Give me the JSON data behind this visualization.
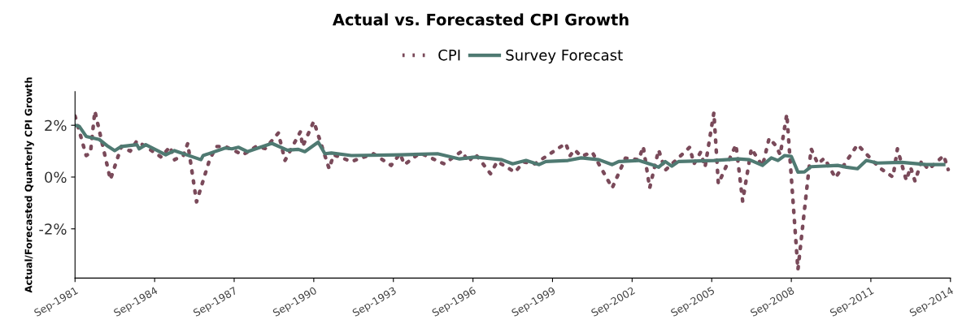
{
  "chart_data": {
    "type": "line",
    "title": "Actual vs. Forecasted CPI Growth",
    "ylabel": "Actual/Forecasted Quarterly CPI Growth",
    "xlim": [
      "1981-09",
      "2014-09"
    ],
    "xticks": [
      {
        "value": "1981-09",
        "label": "Sep-1981"
      },
      {
        "value": "1984-09",
        "label": "Sep-1984"
      },
      {
        "value": "1987-09",
        "label": "Sep-1987"
      },
      {
        "value": "1990-09",
        "label": "Sep-1990"
      },
      {
        "value": "1993-09",
        "label": "Sep-1993"
      },
      {
        "value": "1996-09",
        "label": "Sep-1996"
      },
      {
        "value": "1999-09",
        "label": "Sep-1999"
      },
      {
        "value": "2002-09",
        "label": "Sep-2002"
      },
      {
        "value": "2005-09",
        "label": "Sep-2005"
      },
      {
        "value": "2008-09",
        "label": "Sep-2008"
      },
      {
        "value": "2011-09",
        "label": "Sep-2011"
      },
      {
        "value": "2014-09",
        "label": "Sep-2014"
      }
    ],
    "ylim": [
      -3.9,
      3.3
    ],
    "yticks": [
      {
        "value": -2,
        "label": "-2%"
      },
      {
        "value": 0,
        "label": "0%"
      },
      {
        "value": 2,
        "label": "2%"
      }
    ],
    "grid": false,
    "legend": "top",
    "series": [
      {
        "name": "CPI",
        "color": "#7a4a5a",
        "line_style": "dotted",
        "x": [
          "1981-09",
          "1982-02",
          "1982-04",
          "1982-06",
          "1983-01",
          "1983-06",
          "1983-10",
          "1984-01",
          "1984-12",
          "1985-04",
          "1985-06",
          "1985-10",
          "1985-12",
          "1986-04",
          "1986-10",
          "1987-01",
          "1987-05",
          "1988-01",
          "1988-07",
          "1988-11",
          "1989-05",
          "1989-08",
          "1990-03",
          "1990-04",
          "1990-09",
          "1991-04",
          "1991-06",
          "1992-02",
          "1992-12",
          "1993-08",
          "1993-12",
          "1994-02",
          "1994-09",
          "1995-08",
          "1996-04",
          "1996-07",
          "1996-10",
          "1997-05",
          "1997-08",
          "1998-04",
          "1998-08",
          "1999-01",
          "2000-03",
          "2000-05",
          "2000-07",
          "2000-10",
          "2001-03",
          "2001-12",
          "2002-06",
          "2002-12",
          "2003-02",
          "2003-05",
          "2003-09",
          "2003-12",
          "2004-11",
          "2005-01",
          "2005-04",
          "2005-06",
          "2005-10",
          "2005-12",
          "2006-08",
          "2006-11",
          "2007-03",
          "2007-08",
          "2007-11",
          "2008-02",
          "2008-04",
          "2008-07",
          "2008-12",
          "2009-06",
          "2009-09",
          "2009-12",
          "2010-05",
          "2011-03",
          "2012-01",
          "2012-07",
          "2012-09",
          "2013-01",
          "2013-03",
          "2013-05",
          "2013-08",
          "2013-11",
          "2014-06",
          "2014-08"
        ],
        "values": [
          2.36,
          0.83,
          0.93,
          2.55,
          -0.1,
          1.18,
          1.0,
          1.4,
          0.77,
          1.18,
          0.67,
          0.83,
          1.3,
          -0.96,
          0.7,
          1.18,
          1.18,
          0.86,
          1.18,
          1.1,
          1.7,
          0.64,
          1.75,
          1.18,
          2.15,
          0.32,
          0.86,
          0.6,
          0.9,
          0.45,
          0.9,
          0.48,
          0.93,
          0.51,
          1.0,
          0.58,
          0.9,
          0.13,
          0.6,
          0.19,
          0.58,
          0.51,
          1.3,
          0.83,
          1.05,
          0.8,
          0.96,
          -0.42,
          0.73,
          0.67,
          1.18,
          -0.42,
          1.05,
          0.26,
          1.15,
          0.51,
          0.96,
          0.38,
          2.49,
          -0.26,
          1.25,
          -0.93,
          1.1,
          0.42,
          1.5,
          1.21,
          0.86,
          2.43,
          -3.58,
          1.09,
          0.51,
          0.73,
          -0.03,
          1.25,
          0.35,
          0.0,
          1.09,
          -0.13,
          0.38,
          -0.16,
          0.64,
          0.29,
          0.83,
          0.29
        ]
      },
      {
        "name": "Survey Forecast",
        "color": "#4f7a72",
        "line_style": "solid",
        "x": [
          "1981-09",
          "1981-11",
          "1982-02",
          "1982-08",
          "1982-12",
          "1983-03",
          "1983-06",
          "1984-01",
          "1984-02",
          "1984-05",
          "1985-02",
          "1985-06",
          "1986-06",
          "1986-07",
          "1987-05",
          "1987-08",
          "1987-11",
          "1988-03",
          "1989-02",
          "1989-09",
          "1990-02",
          "1990-05",
          "1990-11",
          "1991-02",
          "1991-05",
          "1992-02",
          "1993-12",
          "1995-05",
          "1996-03",
          "1996-10",
          "1997-10",
          "1998-03",
          "1998-09",
          "1999-03",
          "1999-06",
          "2000-04",
          "2000-10",
          "2001-06",
          "2001-12",
          "2002-03",
          "2002-12",
          "2003-06",
          "2003-09",
          "2003-12",
          "2004-03",
          "2004-06",
          "2005-10",
          "2006-09",
          "2007-02",
          "2007-08",
          "2007-12",
          "2008-03",
          "2008-06",
          "2008-09",
          "2008-12",
          "2009-03",
          "2009-06",
          "2010-06",
          "2010-10",
          "2011-03",
          "2011-07",
          "2011-12",
          "2012-11",
          "2013-10",
          "2014-06"
        ],
        "values": [
          2.0,
          1.95,
          1.57,
          1.45,
          1.18,
          1.02,
          1.18,
          1.25,
          1.09,
          1.25,
          0.86,
          1.02,
          0.67,
          0.83,
          1.12,
          1.09,
          1.15,
          0.98,
          1.3,
          1.04,
          1.07,
          0.98,
          1.35,
          0.9,
          0.93,
          0.83,
          0.86,
          0.9,
          0.7,
          0.77,
          0.67,
          0.51,
          0.64,
          0.48,
          0.6,
          0.64,
          0.74,
          0.67,
          0.48,
          0.6,
          0.64,
          0.48,
          0.38,
          0.6,
          0.42,
          0.6,
          0.64,
          0.7,
          0.67,
          0.45,
          0.74,
          0.64,
          0.83,
          0.8,
          0.19,
          0.2,
          0.4,
          0.45,
          0.38,
          0.32,
          0.64,
          0.54,
          0.57,
          0.48,
          0.48
        ]
      }
    ]
  }
}
